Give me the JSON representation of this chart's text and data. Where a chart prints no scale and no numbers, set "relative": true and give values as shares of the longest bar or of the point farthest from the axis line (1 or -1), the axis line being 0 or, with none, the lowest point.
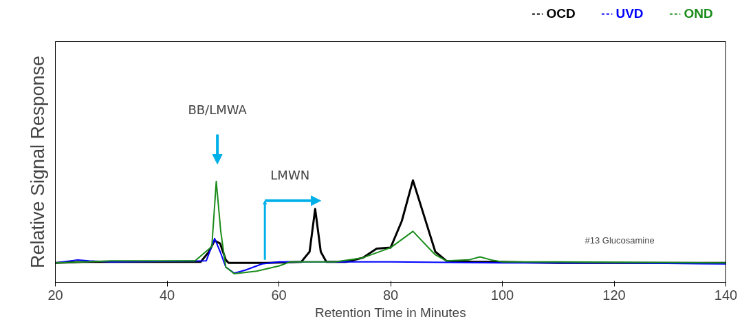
{
  "chart_data": {
    "type": "line",
    "relative": true,
    "xlabel": "Retention Time in Minutes",
    "ylabel": "Relative Signal Response",
    "xlim": [
      20,
      140
    ],
    "xticks": [
      20,
      40,
      60,
      80,
      100,
      120,
      140
    ],
    "grid": false,
    "legend": "top right",
    "line_style": "solid",
    "series": [
      {
        "name": "OCD",
        "color": "#000000",
        "x": [
          20,
          25,
          30,
          40,
          46,
          47.5,
          48.5,
          49.5,
          50.5,
          51,
          55,
          58,
          64,
          65.5,
          66.5,
          67.5,
          68.5,
          72,
          75,
          77.5,
          80,
          82,
          84,
          86,
          88,
          90,
          95,
          100,
          110,
          120,
          130,
          140
        ],
        "values": [
          0.19,
          0.2,
          null,
          0.2,
          0.2,
          0.3,
          0.41,
          0.38,
          0.22,
          0.19,
          0.19,
          0.19,
          0.2,
          0.3,
          0.72,
          0.3,
          0.2,
          0.2,
          0.24,
          0.33,
          0.34,
          0.6,
          1.0,
          0.65,
          0.3,
          0.21,
          0.2,
          0.2,
          0.19,
          0.19,
          0.19,
          0.19
        ]
      },
      {
        "name": "UVD",
        "color": "#0000ff",
        "x": [
          20,
          24,
          26,
          30,
          47,
          48.5,
          49.5,
          50.5,
          52,
          54,
          57,
          60,
          70,
          80,
          100,
          120,
          140
        ],
        "values": [
          0.19,
          0.22,
          0.21,
          0.2,
          0.21,
          0.43,
          0.3,
          0.15,
          0.09,
          0.12,
          0.18,
          0.2,
          0.2,
          0.2,
          0.19,
          0.19,
          0.18
        ]
      },
      {
        "name": "OND",
        "color": "#1a8c1a",
        "x": [
          20,
          30,
          45,
          48,
          48.8,
          49.6,
          50.5,
          52,
          56,
          60,
          62,
          70,
          75,
          80,
          84,
          88,
          90,
          94,
          96,
          98,
          100,
          110,
          140
        ],
        "values": [
          0.19,
          0.21,
          0.21,
          0.35,
          0.99,
          0.5,
          0.15,
          0.085,
          0.11,
          0.16,
          0.2,
          0.2,
          0.24,
          0.34,
          0.5,
          0.27,
          0.21,
          0.22,
          0.25,
          0.22,
          0.2,
          0.2,
          0.19
        ]
      }
    ],
    "annotations": [
      "BB/LMWA",
      "LMWN",
      "#13 Glucosamine"
    ]
  }
}
